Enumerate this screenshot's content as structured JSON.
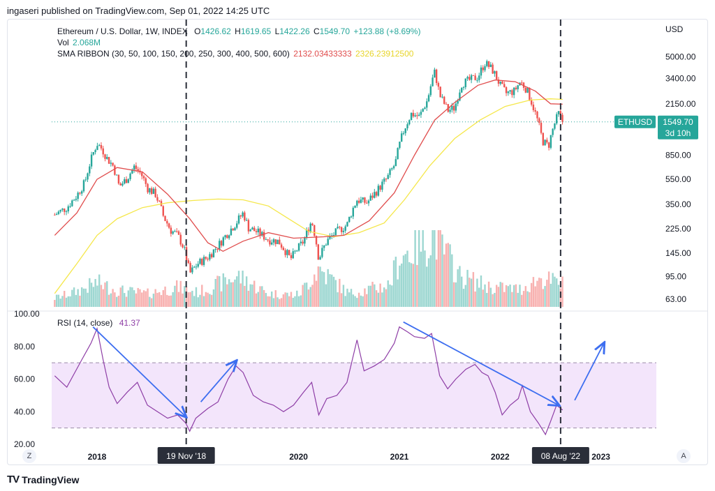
{
  "header": {
    "published": "ingaseri published on TradingView.com, Sep 01, 2022 14:25 UTC"
  },
  "footer": {
    "brand": "TradingView",
    "logo": "TV"
  },
  "buttons": {
    "left": "Z",
    "right": "A"
  },
  "legend": {
    "title": "Ethereum / U.S. Dollar, 1W, INDEX",
    "o_label": "O",
    "o": "1426.62",
    "h_label": "H",
    "h": "1619.65",
    "l_label": "L",
    "l": "1422.26",
    "c_label": "C",
    "c": "1549.70",
    "change": "+123.88 (+8.69%)",
    "vol_label": "Vol",
    "vol": "2.068M",
    "sma_label": "SMA RIBBON (30, 50, 100, 150, 200, 250, 300, 400, 500, 600)",
    "sma1": "2132.03433333",
    "sma2": "2326.23912500",
    "rsi_label": "RSI (14, close)",
    "rsi": "41.37"
  },
  "price_label": {
    "symbol": "ETHUSD",
    "value": "1549.70",
    "countdown": "3d 10h"
  },
  "markers": {
    "left": "19 Nov '18",
    "right": "08 Aug '22"
  },
  "colors": {
    "up": "#26a69a",
    "down": "#ef5350",
    "sma_red": "#e04d4d",
    "sma_yellow": "#f5e74a",
    "rsi_line": "#8e3ea6",
    "rsi_band": "#f3e5fb",
    "arrow": "#3d6ef0",
    "price_line": "#26a69a"
  },
  "chart_data": {
    "type": "candlestick",
    "title": "Ethereum / U.S. Dollar, 1W, INDEX",
    "y_axis_label": "USD",
    "y_scale": "log",
    "y_ticks": [
      5000,
      3400,
      2150,
      1300,
      850,
      550,
      350,
      225,
      145,
      95,
      63
    ],
    "y_tick_labels": [
      "5000.00",
      "3400.00",
      "2150.00",
      "",
      "850.00",
      "550.00",
      "350.00",
      "225.00",
      "145.00",
      "95.00",
      "63.00"
    ],
    "x_ticks": [
      "2018",
      "2020",
      "2021",
      "2022",
      "2023"
    ],
    "x_tick_years": [
      2018,
      2020,
      2021,
      2022,
      2023
    ],
    "x_range": [
      2017.55,
      2023.55
    ],
    "price_anchors": [
      [
        2017.58,
        290
      ],
      [
        2017.7,
        330
      ],
      [
        2017.8,
        410
      ],
      [
        2017.88,
        520
      ],
      [
        2017.94,
        780
      ],
      [
        2018.0,
        1050
      ],
      [
        2018.05,
        950
      ],
      [
        2018.1,
        800
      ],
      [
        2018.16,
        700
      ],
      [
        2018.22,
        480
      ],
      [
        2018.3,
        560
      ],
      [
        2018.37,
        690
      ],
      [
        2018.44,
        600
      ],
      [
        2018.5,
        470
      ],
      [
        2018.58,
        420
      ],
      [
        2018.66,
        280
      ],
      [
        2018.73,
        220
      ],
      [
        2018.8,
        200
      ],
      [
        2018.86,
        160
      ],
      [
        2018.92,
        100
      ],
      [
        2019.0,
        120
      ],
      [
        2019.1,
        135
      ],
      [
        2019.2,
        165
      ],
      [
        2019.3,
        210
      ],
      [
        2019.38,
        250
      ],
      [
        2019.45,
        300
      ],
      [
        2019.5,
        230
      ],
      [
        2019.6,
        210
      ],
      [
        2019.7,
        185
      ],
      [
        2019.8,
        180
      ],
      [
        2019.92,
        130
      ],
      [
        2020.05,
        180
      ],
      [
        2020.13,
        260
      ],
      [
        2020.2,
        130
      ],
      [
        2020.28,
        180
      ],
      [
        2020.38,
        215
      ],
      [
        2020.48,
        240
      ],
      [
        2020.58,
        380
      ],
      [
        2020.68,
        360
      ],
      [
        2020.78,
        450
      ],
      [
        2020.88,
        560
      ],
      [
        2020.96,
        730
      ],
      [
        2021.04,
        1300
      ],
      [
        2021.12,
        1800
      ],
      [
        2021.2,
        1700
      ],
      [
        2021.28,
        2300
      ],
      [
        2021.35,
        3800
      ],
      [
        2021.4,
        2500
      ],
      [
        2021.48,
        1900
      ],
      [
        2021.55,
        2000
      ],
      [
        2021.62,
        3100
      ],
      [
        2021.7,
        3300
      ],
      [
        2021.78,
        3500
      ],
      [
        2021.85,
        4500
      ],
      [
        2021.92,
        4000
      ],
      [
        2022.0,
        3000
      ],
      [
        2022.06,
        2600
      ],
      [
        2022.14,
        2700
      ],
      [
        2022.2,
        3200
      ],
      [
        2022.26,
        2800
      ],
      [
        2022.34,
        1900
      ],
      [
        2022.42,
        1100
      ],
      [
        2022.48,
        1000
      ],
      [
        2022.54,
        1500
      ],
      [
        2022.58,
        1800
      ],
      [
        2022.62,
        1550
      ]
    ],
    "volume_anchors": [
      [
        2017.58,
        0.8
      ],
      [
        2017.8,
        1.4
      ],
      [
        2018.0,
        2.2
      ],
      [
        2018.2,
        1.5
      ],
      [
        2018.5,
        1.2
      ],
      [
        2018.8,
        1.8
      ],
      [
        2019.0,
        1.3
      ],
      [
        2019.4,
        2.8
      ],
      [
        2019.7,
        1.2
      ],
      [
        2020.0,
        1.1
      ],
      [
        2020.2,
        3.5
      ],
      [
        2020.5,
        1.2
      ],
      [
        2020.9,
        2.0
      ],
      [
        2021.0,
        4.5
      ],
      [
        2021.35,
        6.5
      ],
      [
        2021.6,
        2.8
      ],
      [
        2021.9,
        1.8
      ],
      [
        2022.2,
        1.6
      ],
      [
        2022.4,
        2.6
      ],
      [
        2022.62,
        2.07
      ]
    ],
    "sma_short_anchors": [
      [
        2017.58,
        200
      ],
      [
        2017.8,
        300
      ],
      [
        2018.0,
        550
      ],
      [
        2018.2,
        680
      ],
      [
        2018.45,
        630
      ],
      [
        2018.7,
        420
      ],
      [
        2018.92,
        270
      ],
      [
        2019.1,
        175
      ],
      [
        2019.25,
        150
      ],
      [
        2019.45,
        180
      ],
      [
        2019.7,
        210
      ],
      [
        2019.95,
        190
      ],
      [
        2020.25,
        195
      ],
      [
        2020.45,
        200
      ],
      [
        2020.7,
        260
      ],
      [
        2020.95,
        430
      ],
      [
        2021.15,
        850
      ],
      [
        2021.35,
        1600
      ],
      [
        2021.55,
        2200
      ],
      [
        2021.78,
        3000
      ],
      [
        2021.95,
        3300
      ],
      [
        2022.15,
        3200
      ],
      [
        2022.35,
        2700
      ],
      [
        2022.5,
        2150
      ],
      [
        2022.62,
        2132
      ]
    ],
    "sma_long_anchors": [
      [
        2017.58,
        70
      ],
      [
        2017.8,
        120
      ],
      [
        2018.0,
        200
      ],
      [
        2018.2,
        270
      ],
      [
        2018.45,
        330
      ],
      [
        2018.7,
        360
      ],
      [
        2018.95,
        375
      ],
      [
        2019.2,
        385
      ],
      [
        2019.45,
        380
      ],
      [
        2019.7,
        340
      ],
      [
        2019.9,
        270
      ],
      [
        2020.1,
        215
      ],
      [
        2020.35,
        195
      ],
      [
        2020.6,
        210
      ],
      [
        2020.85,
        250
      ],
      [
        2021.05,
        380
      ],
      [
        2021.3,
        700
      ],
      [
        2021.55,
        1150
      ],
      [
        2021.8,
        1600
      ],
      [
        2022.05,
        2050
      ],
      [
        2022.3,
        2300
      ],
      [
        2022.5,
        2350
      ],
      [
        2022.62,
        2326
      ]
    ],
    "last_price": 1549.7,
    "rsi": {
      "title": "RSI (14, close)",
      "y_ticks": [
        100,
        80,
        60,
        40,
        20
      ],
      "y_tick_labels": [
        "100.00",
        "80.00",
        "60.00",
        "40.00",
        "20.00"
      ],
      "band": [
        30,
        70
      ],
      "last": 41.37,
      "anchors": [
        [
          2017.58,
          62
        ],
        [
          2017.7,
          55
        ],
        [
          2017.85,
          72
        ],
        [
          2017.94,
          82
        ],
        [
          2018.0,
          91
        ],
        [
          2018.06,
          72
        ],
        [
          2018.12,
          55
        ],
        [
          2018.2,
          45
        ],
        [
          2018.3,
          52
        ],
        [
          2018.4,
          58
        ],
        [
          2018.5,
          44
        ],
        [
          2018.6,
          40
        ],
        [
          2018.7,
          36
        ],
        [
          2018.8,
          38
        ],
        [
          2018.88,
          33
        ],
        [
          2018.92,
          28
        ],
        [
          2018.98,
          36
        ],
        [
          2019.1,
          42
        ],
        [
          2019.2,
          46
        ],
        [
          2019.3,
          60
        ],
        [
          2019.38,
          68
        ],
        [
          2019.45,
          64
        ],
        [
          2019.55,
          50
        ],
        [
          2019.65,
          46
        ],
        [
          2019.75,
          44
        ],
        [
          2019.85,
          40
        ],
        [
          2019.95,
          44
        ],
        [
          2020.05,
          52
        ],
        [
          2020.13,
          58
        ],
        [
          2020.2,
          38
        ],
        [
          2020.28,
          48
        ],
        [
          2020.38,
          50
        ],
        [
          2020.48,
          58
        ],
        [
          2020.58,
          84
        ],
        [
          2020.65,
          65
        ],
        [
          2020.75,
          68
        ],
        [
          2020.85,
          72
        ],
        [
          2020.95,
          82
        ],
        [
          2021.0,
          92
        ],
        [
          2021.08,
          89
        ],
        [
          2021.15,
          86
        ],
        [
          2021.25,
          85
        ],
        [
          2021.32,
          88
        ],
        [
          2021.4,
          62
        ],
        [
          2021.48,
          54
        ],
        [
          2021.56,
          60
        ],
        [
          2021.66,
          66
        ],
        [
          2021.75,
          69
        ],
        [
          2021.82,
          64
        ],
        [
          2021.88,
          62
        ],
        [
          2021.95,
          52
        ],
        [
          2022.02,
          38
        ],
        [
          2022.1,
          44
        ],
        [
          2022.18,
          48
        ],
        [
          2022.22,
          56
        ],
        [
          2022.3,
          40
        ],
        [
          2022.38,
          33
        ],
        [
          2022.45,
          26
        ],
        [
          2022.5,
          34
        ],
        [
          2022.56,
          44
        ],
        [
          2022.62,
          41
        ]
      ]
    }
  }
}
